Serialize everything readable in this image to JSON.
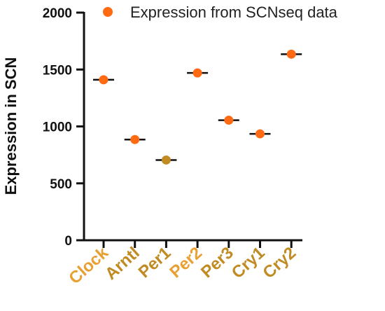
{
  "chart_data": {
    "type": "scatter",
    "categories": [
      "Clock",
      "Arntl",
      "Per1",
      "Per2",
      "Per3",
      "Cry1",
      "Cry2"
    ],
    "series": [
      {
        "name": "Expression from SCNseq data",
        "values": [
          1410,
          885,
          705,
          1470,
          1055,
          935,
          1635
        ],
        "mean_lines": [
          1410,
          885,
          705,
          1470,
          1055,
          935,
          1635
        ]
      }
    ],
    "ylabel": "Expression in SCN",
    "xlabel": "",
    "ylim": [
      0,
      2000
    ],
    "yticks": [
      "0",
      "500",
      "1000",
      "1500",
      "2000"
    ],
    "ytick_values": [
      0,
      500,
      1000,
      1500,
      2000
    ],
    "legend_position": "top-right",
    "grid": false,
    "colors": {
      "marker": "#FF6A13",
      "marker_dark": "#C08B22",
      "category_labels": [
        "#E8A033",
        "#C08B22",
        "#C08B22",
        "#E8A033",
        "#C08B22",
        "#C08B22",
        "#C08B22"
      ],
      "axis": "#111111"
    }
  }
}
